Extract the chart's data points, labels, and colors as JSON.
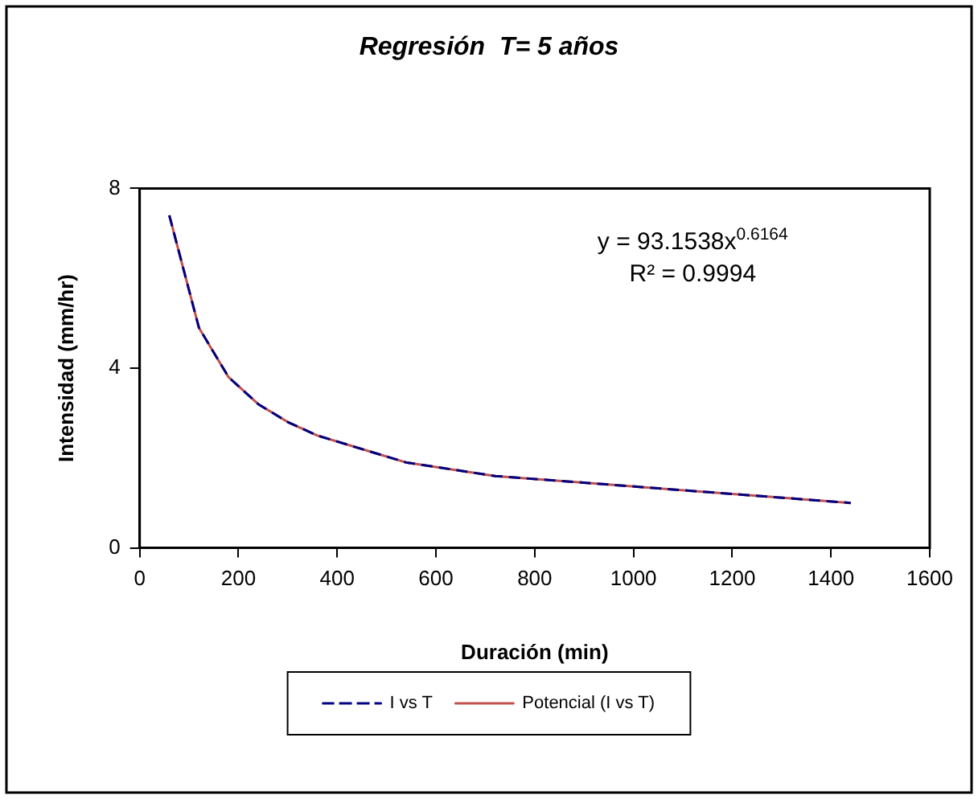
{
  "chart_data": {
    "type": "line",
    "title": "Regresión  T= 5 años",
    "xlabel": "Duración (min)",
    "ylabel": "Intensidad (mm/hr)",
    "x": [
      60,
      120,
      180,
      240,
      300,
      360,
      420,
      480,
      540,
      600,
      720,
      840,
      960,
      1080,
      1200,
      1320,
      1440
    ],
    "series": [
      {
        "name": "I vs T",
        "color": "#000080",
        "line_style": "dashed",
        "values": [
          7.4,
          4.9,
          3.8,
          3.2,
          2.8,
          2.5,
          2.3,
          2.1,
          1.9,
          1.8,
          1.6,
          1.5,
          1.4,
          1.3,
          1.2,
          1.1,
          1.0
        ]
      },
      {
        "name": "Potencial (I vs T)",
        "color": "#c0504d",
        "line_style": "solid",
        "values": [
          7.4,
          4.9,
          3.8,
          3.2,
          2.8,
          2.5,
          2.3,
          2.1,
          1.9,
          1.8,
          1.6,
          1.5,
          1.4,
          1.3,
          1.2,
          1.1,
          1.0
        ]
      }
    ],
    "xlim": [
      0,
      1600
    ],
    "xticks": [
      0,
      200,
      400,
      600,
      800,
      1000,
      1200,
      1400,
      1600
    ],
    "ylim": [
      0,
      8
    ],
    "yticks": [
      0,
      4,
      8
    ],
    "annotations": [
      "y = 93.1538x$^{0.6164}$",
      "R² = 0.9994"
    ],
    "grid": false,
    "legend": "bottom",
    "marker": "none"
  }
}
